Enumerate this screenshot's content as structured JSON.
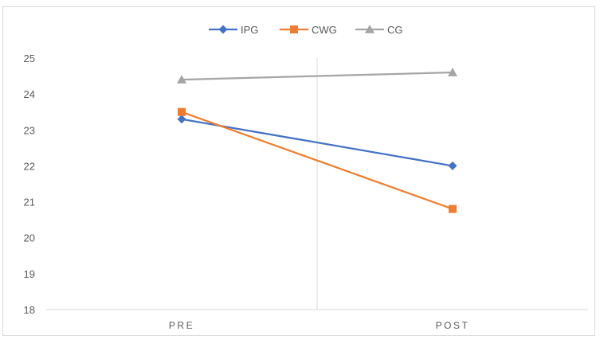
{
  "chart_data": {
    "type": "line",
    "categories": [
      "PRE",
      "POST"
    ],
    "series": [
      {
        "name": "IPG",
        "values": [
          23.3,
          22.0
        ],
        "color": "#4472c4",
        "marker": "diamond"
      },
      {
        "name": "CWG",
        "values": [
          23.5,
          20.8
        ],
        "color": "#ed7d31",
        "marker": "square"
      },
      {
        "name": "CG",
        "values": [
          24.4,
          24.6
        ],
        "color": "#a5a5a5",
        "marker": "triangle"
      }
    ],
    "ylim": [
      18,
      25
    ],
    "yticks": [
      25,
      24,
      23,
      22,
      21,
      20,
      19,
      18
    ],
    "legend_position": "top",
    "grid": "vertical category separators"
  }
}
